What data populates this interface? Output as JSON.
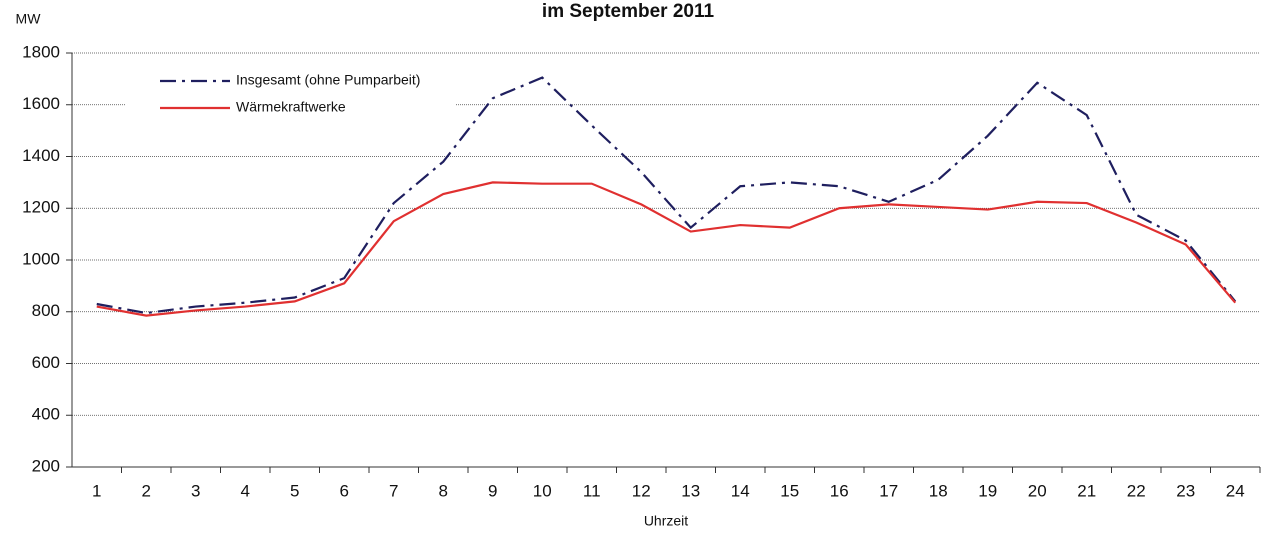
{
  "chart_data": {
    "type": "line",
    "title": "im September 2011",
    "y_label": "MW",
    "x_label": "Uhrzeit",
    "categories": [
      "1",
      "2",
      "3",
      "4",
      "5",
      "6",
      "7",
      "8",
      "9",
      "10",
      "11",
      "12",
      "13",
      "14",
      "15",
      "16",
      "17",
      "18",
      "19",
      "20",
      "21",
      "22",
      "23",
      "24"
    ],
    "series": [
      {
        "name": "Insgesamt (ohne Pumparbeit)",
        "color": "#1f1f5f",
        "dash": "dashdot",
        "values": [
          830,
          795,
          820,
          835,
          855,
          930,
          1220,
          1380,
          1625,
          1705,
          1520,
          1340,
          1125,
          1285,
          1300,
          1285,
          1225,
          1310,
          1480,
          1685,
          1560,
          1175,
          1075,
          840
        ]
      },
      {
        "name": "Wärmekraftwerke",
        "color": "#e03030",
        "dash": "solid",
        "values": [
          820,
          785,
          805,
          820,
          840,
          910,
          1150,
          1255,
          1300,
          1295,
          1295,
          1215,
          1110,
          1135,
          1125,
          1200,
          1215,
          1205,
          1195,
          1225,
          1220,
          1145,
          1060,
          835
        ]
      }
    ],
    "ylim": [
      200,
      1800
    ],
    "yticks": [
      200,
      400,
      600,
      800,
      1000,
      1200,
      1400,
      1600,
      1800
    ],
    "grid": true,
    "legend": "upper left"
  }
}
